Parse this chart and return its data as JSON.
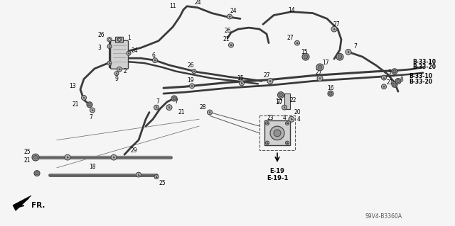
{
  "bg_color": "#f5f5f5",
  "line_color": "#3a3a3a",
  "text_color": "#000000",
  "ref_code": "S9V4-B3360A",
  "fr_label": "FR.",
  "bold_refs": [
    "B-33-10",
    "B-33-20",
    "E-19",
    "E-19-1"
  ]
}
